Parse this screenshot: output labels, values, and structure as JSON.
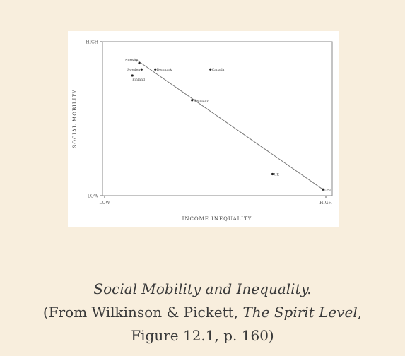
{
  "chart_data": {
    "type": "scatter",
    "xlabel": "Income inequality",
    "ylabel": "Social mobility",
    "x_ticks": [
      "LOW",
      "HIGH"
    ],
    "y_ticks": [
      "HIGH",
      "LOW"
    ],
    "xlim": [
      0,
      10
    ],
    "ylim": [
      0,
      10
    ],
    "points": [
      {
        "label": "Norway",
        "x": 1.6,
        "y": 8.6
      },
      {
        "label": "Sweden",
        "x": 1.7,
        "y": 8.2
      },
      {
        "label": "Finland",
        "x": 1.3,
        "y": 7.8
      },
      {
        "label": "Denmark",
        "x": 2.3,
        "y": 8.2
      },
      {
        "label": "Canada",
        "x": 4.7,
        "y": 8.2
      },
      {
        "label": "Germany",
        "x": 3.9,
        "y": 6.2
      },
      {
        "label": "UK",
        "x": 7.4,
        "y": 1.4
      },
      {
        "label": "USA",
        "x": 9.6,
        "y": 0.4
      }
    ],
    "trendline": {
      "x1": 1.4,
      "y1": 8.9,
      "x2": 9.6,
      "y2": 0.4
    },
    "grid": false
  },
  "caption": {
    "title": "Social Mobility and Inequality.",
    "source_prefix": "(From Wilkinson & Pickett, ",
    "source_book": "The Spirit Level",
    "source_suffix": ",",
    "source_line2": "Figure 12.1, p. 160)"
  }
}
